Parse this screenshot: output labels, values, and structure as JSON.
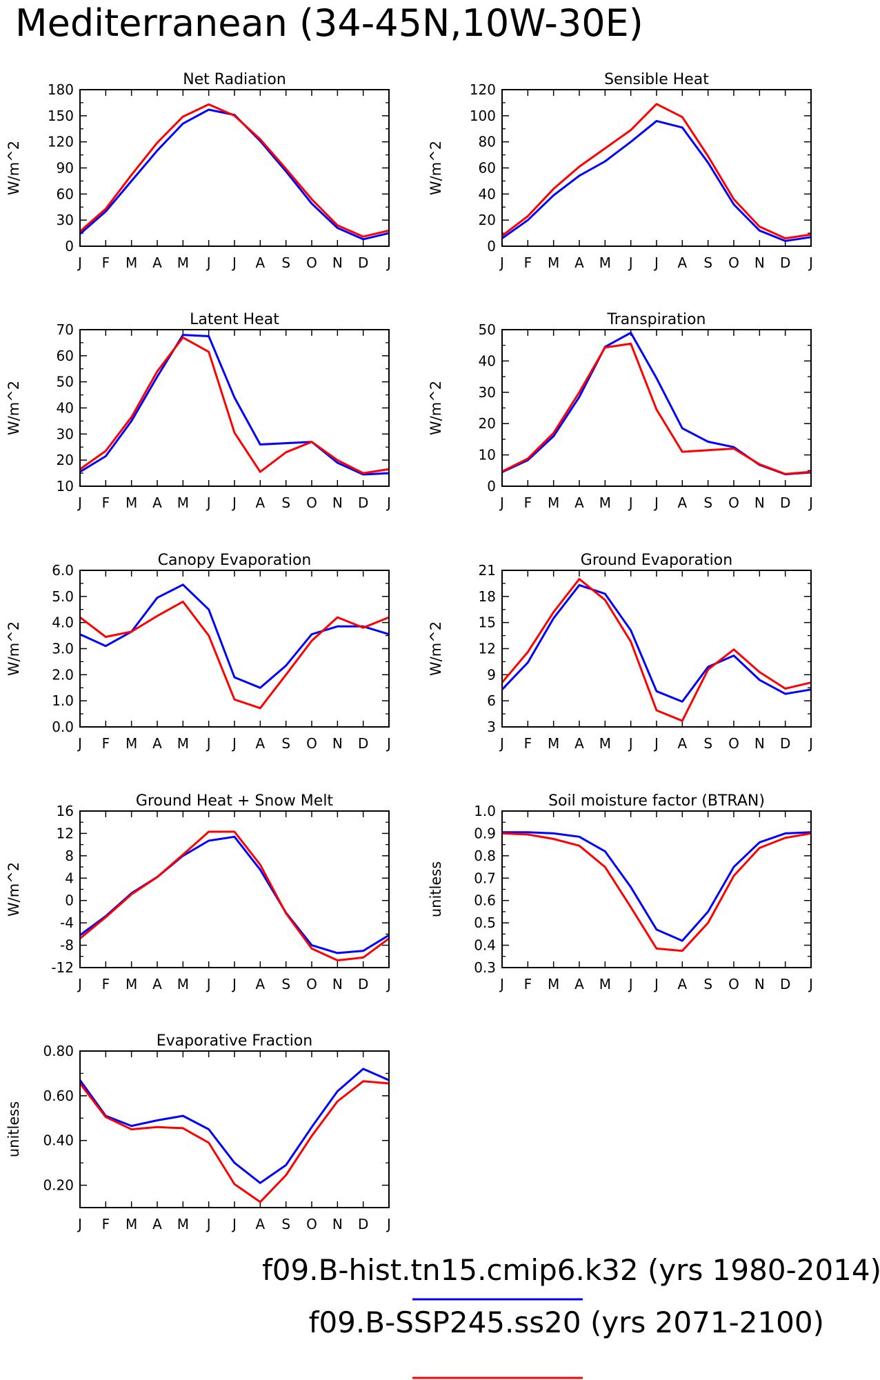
{
  "title": "Mediterranean (34-45N,10W-30E)",
  "months": [
    "J",
    "F",
    "M",
    "A",
    "M",
    "J",
    "J",
    "A",
    "S",
    "O",
    "N",
    "D",
    "J"
  ],
  "colors": {
    "hist": "#0000ff",
    "ssp": "#ff0000"
  },
  "legend": [
    {
      "label": "f09.B-hist.tn15.cmip6.k32 (yrs 1980-2014)",
      "color": "#0000ff"
    },
    {
      "label": "f09.B-SSP245.ss20 (yrs 2071-2100)",
      "color": "#ff0000"
    }
  ],
  "chart_data": [
    {
      "type": "line",
      "title": "Net Radiation",
      "ylabel": "W/m^2",
      "ylim": [
        0,
        180
      ],
      "yticks": [
        "0",
        "30",
        "60",
        "90",
        "120",
        "150",
        "180"
      ],
      "series": [
        {
          "color": "#0000ff",
          "values": [
            14,
            40,
            75,
            110,
            141,
            157,
            151,
            121,
            86,
            49,
            21,
            8,
            15
          ]
        },
        {
          "color": "#ff0000",
          "values": [
            17,
            43,
            82,
            119,
            149,
            163,
            150,
            123,
            89,
            54,
            24,
            11,
            18
          ]
        }
      ]
    },
    {
      "type": "line",
      "title": "Sensible Heat",
      "ylabel": "W/m^2",
      "ylim": [
        0,
        120
      ],
      "yticks": [
        "0",
        "20",
        "40",
        "60",
        "80",
        "100",
        "120"
      ],
      "series": [
        {
          "color": "#0000ff",
          "values": [
            6,
            20,
            39,
            54,
            65,
            80,
            96,
            91,
            64,
            32,
            12,
            4,
            7
          ]
        },
        {
          "color": "#ff0000",
          "values": [
            8,
            23,
            44,
            61,
            75,
            89,
            109,
            99,
            69,
            36,
            15,
            6,
            9
          ]
        }
      ]
    },
    {
      "type": "line",
      "title": "Latent Heat",
      "ylabel": "W/m^2",
      "ylim": [
        10,
        70
      ],
      "yticks": [
        "10",
        "20",
        "30",
        "40",
        "50",
        "60",
        "70"
      ],
      "series": [
        {
          "color": "#0000ff",
          "values": [
            15.5,
            21.5,
            35,
            52,
            68,
            67.5,
            44,
            26,
            26.5,
            27,
            19,
            14.5,
            15
          ]
        },
        {
          "color": "#ff0000",
          "values": [
            16.5,
            23.5,
            36.5,
            54,
            67,
            61.5,
            30.5,
            15.5,
            23,
            27,
            20,
            15,
            16.5
          ]
        }
      ]
    },
    {
      "type": "line",
      "title": "Transpiration",
      "ylabel": "W/m^2",
      "ylim": [
        0,
        50
      ],
      "yticks": [
        "0",
        "10",
        "20",
        "30",
        "40",
        "50"
      ],
      "series": [
        {
          "color": "#0000ff",
          "values": [
            4.5,
            8.3,
            16,
            28.5,
            44.5,
            49,
            34.5,
            18.5,
            14.2,
            12.5,
            6.8,
            3.8,
            4.4
          ]
        },
        {
          "color": "#ff0000",
          "values": [
            4.7,
            8.8,
            17,
            30,
            44.3,
            45.5,
            24.5,
            11,
            11.5,
            12,
            7,
            3.9,
            4.6
          ]
        }
      ]
    },
    {
      "type": "line",
      "title": "Canopy Evaporation",
      "ylabel": "W/m^2",
      "ylim": [
        0,
        6
      ],
      "yticks": [
        "0.0",
        "1.0",
        "2.0",
        "3.0",
        "4.0",
        "5.0",
        "6.0"
      ],
      "series": [
        {
          "color": "#0000ff",
          "values": [
            3.55,
            3.1,
            3.65,
            4.95,
            5.45,
            4.5,
            1.9,
            1.5,
            2.35,
            3.55,
            3.85,
            3.85,
            3.55
          ]
        },
        {
          "color": "#ff0000",
          "values": [
            4.2,
            3.45,
            3.65,
            4.25,
            4.8,
            3.5,
            1.05,
            0.72,
            2.0,
            3.3,
            4.2,
            3.8,
            4.2
          ]
        }
      ]
    },
    {
      "type": "line",
      "title": "Ground Evaporation",
      "ylabel": "W/m^2",
      "ylim": [
        3,
        21
      ],
      "yticks": [
        "3",
        "6",
        "9",
        "12",
        "15",
        "18",
        "21"
      ],
      "series": [
        {
          "color": "#0000ff",
          "values": [
            7.3,
            10.4,
            15.5,
            19.3,
            18.3,
            14.1,
            7.1,
            5.9,
            9.9,
            11.2,
            8.4,
            6.8,
            7.3
          ]
        },
        {
          "color": "#ff0000",
          "values": [
            8.1,
            11.6,
            16.2,
            20,
            17.6,
            12.8,
            4.9,
            3.7,
            9.6,
            11.9,
            9.3,
            7.4,
            8.1
          ]
        }
      ]
    },
    {
      "type": "line",
      "title": "Ground Heat + Snow Melt",
      "ylabel": "W/m^2",
      "ylim": [
        -12,
        16
      ],
      "yticks": [
        "-12",
        "-8",
        "-4",
        "0",
        "4",
        "8",
        "12",
        "16"
      ],
      "series": [
        {
          "color": "#0000ff",
          "values": [
            -6.2,
            -2.8,
            1.3,
            4.2,
            8.0,
            10.7,
            11.4,
            5.5,
            -2.2,
            -8.0,
            -9.4,
            -9.0,
            -6.2
          ]
        },
        {
          "color": "#ff0000",
          "values": [
            -6.8,
            -3.0,
            1.1,
            4.2,
            8.2,
            12.3,
            12.3,
            6.4,
            -2.3,
            -8.6,
            -10.7,
            -10.2,
            -6.8
          ]
        }
      ]
    },
    {
      "type": "line",
      "title": "Soil moisture factor (BTRAN)",
      "ylabel": "unitless",
      "ylim": [
        0.3,
        1.0
      ],
      "yticks": [
        "0.3",
        "0.4",
        "0.5",
        "0.6",
        "0.7",
        "0.8",
        "0.9",
        "1.0"
      ],
      "series": [
        {
          "color": "#0000ff",
          "values": [
            0.905,
            0.905,
            0.9,
            0.885,
            0.82,
            0.66,
            0.47,
            0.42,
            0.55,
            0.75,
            0.86,
            0.9,
            0.905
          ]
        },
        {
          "color": "#ff0000",
          "values": [
            0.9,
            0.895,
            0.875,
            0.845,
            0.75,
            0.57,
            0.385,
            0.375,
            0.5,
            0.71,
            0.835,
            0.88,
            0.9
          ]
        }
      ]
    },
    {
      "type": "line",
      "title": "Evaporative Fraction",
      "ylabel": "unitless",
      "ylim": [
        0.1,
        0.8
      ],
      "yticks": [
        "0.20",
        "0.40",
        "0.60",
        "0.80"
      ],
      "series": [
        {
          "color": "#0000ff",
          "values": [
            0.67,
            0.51,
            0.465,
            0.49,
            0.51,
            0.45,
            0.3,
            0.21,
            0.29,
            0.46,
            0.62,
            0.72,
            0.67
          ]
        },
        {
          "color": "#ff0000",
          "values": [
            0.655,
            0.505,
            0.45,
            0.46,
            0.455,
            0.39,
            0.205,
            0.125,
            0.245,
            0.42,
            0.575,
            0.665,
            0.655
          ]
        }
      ]
    }
  ]
}
